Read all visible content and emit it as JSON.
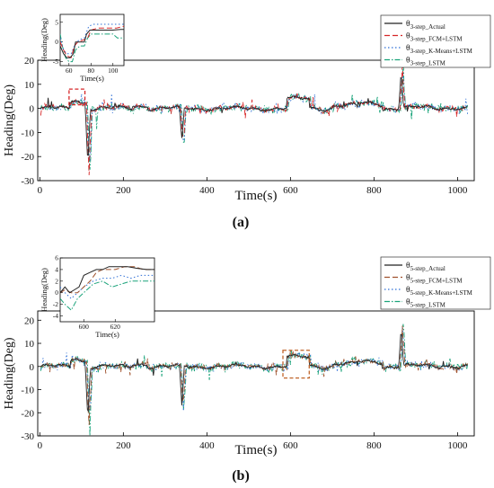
{
  "chart_data": [
    {
      "type": "line",
      "panel_label": "(a)",
      "xlabel": "Time(s)",
      "ylabel": "Heading(Deg)",
      "xlim": [
        -5,
        1040
      ],
      "ylim": [
        -30,
        20
      ],
      "xticks": [
        "0",
        "200",
        "400",
        "600",
        "800",
        "1000"
      ],
      "yticks": [
        "20",
        "10",
        "0",
        "-10",
        "-20",
        "-30"
      ],
      "legend_position": "top-right",
      "series": [
        {
          "name_main": "θ",
          "name_sub": "3-step_Actual",
          "color": "#222222",
          "dash": "none"
        },
        {
          "name_main": "θ",
          "name_sub": "3-step_FCM+LSTM",
          "color": "#d62728",
          "dash": "6,3"
        },
        {
          "name_main": "θ",
          "name_sub": "3-step_K-Means+LSTM",
          "color": "#2f6fd6",
          "dash": "1.5,2.5"
        },
        {
          "name_main": "θ",
          "name_sub": "3-step_LSTM",
          "color": "#1aa37a",
          "dash": "6,2,1.5,2"
        }
      ],
      "events": [
        {
          "t": 115,
          "v": -27
        },
        {
          "t": 340,
          "v": -17
        },
        {
          "t": 865,
          "v": 18
        }
      ],
      "highlight_box": {
        "x": [
          70,
          108
        ],
        "y": [
          1.5,
          8
        ],
        "color": "#d62728"
      },
      "inset": {
        "xlim": [
          52,
          110
        ],
        "ylim": [
          -6,
          7
        ],
        "xticks": [
          "60",
          "80",
          "100"
        ],
        "yticks": [
          "5",
          "0",
          "-5"
        ],
        "xlabel": "Time(s)",
        "ylabel": "Heading(Deg)",
        "actual": [
          [
            52,
            -1
          ],
          [
            55,
            -3
          ],
          [
            58,
            -4
          ],
          [
            61,
            -4
          ],
          [
            64,
            -3
          ],
          [
            66,
            0
          ],
          [
            70,
            0
          ],
          [
            74,
            0
          ],
          [
            76,
            2
          ],
          [
            79,
            3
          ],
          [
            84,
            3
          ],
          [
            92,
            3
          ],
          [
            100,
            3
          ],
          [
            107,
            3.2
          ],
          [
            110,
            3.2
          ]
        ],
        "fcm": [
          [
            52,
            0
          ],
          [
            55,
            -2
          ],
          [
            58,
            -3.5
          ],
          [
            62,
            -4
          ],
          [
            65,
            -1
          ],
          [
            68,
            0
          ],
          [
            73,
            0.5
          ],
          [
            77,
            1
          ],
          [
            80,
            3
          ],
          [
            86,
            3.5
          ],
          [
            95,
            3.5
          ],
          [
            103,
            3.5
          ],
          [
            110,
            4
          ]
        ],
        "kmeans": [
          [
            52,
            1
          ],
          [
            55,
            -2
          ],
          [
            58,
            -3
          ],
          [
            62,
            -3
          ],
          [
            65,
            -1
          ],
          [
            69,
            0.5
          ],
          [
            74,
            1
          ],
          [
            78,
            4
          ],
          [
            82,
            4.5
          ],
          [
            90,
            4.5
          ],
          [
            100,
            4.5
          ],
          [
            110,
            4.5
          ]
        ],
        "lstm": [
          [
            52,
            2
          ],
          [
            54,
            -1
          ],
          [
            57,
            -4
          ],
          [
            60,
            -5
          ],
          [
            63,
            -5
          ],
          [
            66,
            -2
          ],
          [
            70,
            -1
          ],
          [
            74,
            -1
          ],
          [
            77,
            1
          ],
          [
            80,
            2
          ],
          [
            85,
            2
          ],
          [
            90,
            2
          ],
          [
            95,
            2
          ],
          [
            100,
            2
          ],
          [
            104,
            1
          ],
          [
            110,
            1
          ]
        ]
      }
    },
    {
      "type": "line",
      "panel_label": "(b)",
      "xlabel": "Time(s)",
      "ylabel": "Heading(Deg)",
      "xlim": [
        -5,
        1040
      ],
      "ylim": [
        -30,
        24
      ],
      "xticks": [
        "0",
        "200",
        "400",
        "600",
        "800",
        "1000"
      ],
      "yticks": [
        "20",
        "10",
        "0",
        "-10",
        "-20",
        "-30"
      ],
      "legend_position": "top-right",
      "series": [
        {
          "name_main": "θ",
          "name_sub": "5-step_Actual",
          "color": "#222222",
          "dash": "none"
        },
        {
          "name_main": "θ",
          "name_sub": "5-step_FCM+LSTM",
          "color": "#a0522d",
          "dash": "6,3"
        },
        {
          "name_main": "θ",
          "name_sub": "5-step_K-Means+LSTM",
          "color": "#2f6fd6",
          "dash": "1.5,2.5"
        },
        {
          "name_main": "θ",
          "name_sub": "5-step_LSTM",
          "color": "#1aa37a",
          "dash": "6,2,1.5,2"
        }
      ],
      "events": [
        {
          "t": 115,
          "v": -26
        },
        {
          "t": 340,
          "v": -20
        },
        {
          "t": 865,
          "v": 20
        }
      ],
      "highlight_box": {
        "x": [
          582,
          645
        ],
        "y": [
          -5,
          7
        ],
        "color": "#c0652b"
      },
      "inset": {
        "xlim": [
          585,
          645
        ],
        "ylim": [
          -5,
          6
        ],
        "xticks": [
          "600",
          "620"
        ],
        "yticks": [
          "6",
          "4",
          "2",
          "0",
          "-2",
          "-4"
        ],
        "xlabel": "Time(s)",
        "ylabel": "Heading(Deg)",
        "actual": [
          [
            585,
            0
          ],
          [
            588,
            1
          ],
          [
            591,
            0
          ],
          [
            594,
            0.5
          ],
          [
            597,
            1
          ],
          [
            600,
            3
          ],
          [
            604,
            3.5
          ],
          [
            608,
            4
          ],
          [
            612,
            4
          ],
          [
            616,
            4.5
          ],
          [
            622,
            4.5
          ],
          [
            628,
            4.5
          ],
          [
            634,
            4.2
          ],
          [
            640,
            4
          ],
          [
            645,
            4
          ]
        ],
        "fcm": [
          [
            585,
            0
          ],
          [
            588,
            0.5
          ],
          [
            592,
            0
          ],
          [
            596,
            0
          ],
          [
            600,
            1
          ],
          [
            604,
            2
          ],
          [
            608,
            3.5
          ],
          [
            612,
            4
          ],
          [
            620,
            4
          ],
          [
            626,
            4.5
          ],
          [
            632,
            4.5
          ],
          [
            638,
            4
          ],
          [
            645,
            4
          ]
        ],
        "kmeans": [
          [
            585,
            1
          ],
          [
            588,
            0
          ],
          [
            592,
            -1
          ],
          [
            596,
            0
          ],
          [
            600,
            1
          ],
          [
            606,
            2
          ],
          [
            612,
            2.5
          ],
          [
            618,
            2.5
          ],
          [
            624,
            3
          ],
          [
            630,
            2.5
          ],
          [
            636,
            3
          ],
          [
            645,
            3
          ]
        ],
        "lstm": [
          [
            585,
            -1
          ],
          [
            588,
            -2
          ],
          [
            592,
            -3
          ],
          [
            596,
            -1
          ],
          [
            600,
            0
          ],
          [
            606,
            1.5
          ],
          [
            612,
            2
          ],
          [
            618,
            1
          ],
          [
            624,
            1.5
          ],
          [
            630,
            2
          ],
          [
            636,
            2
          ],
          [
            645,
            2
          ]
        ]
      }
    }
  ]
}
